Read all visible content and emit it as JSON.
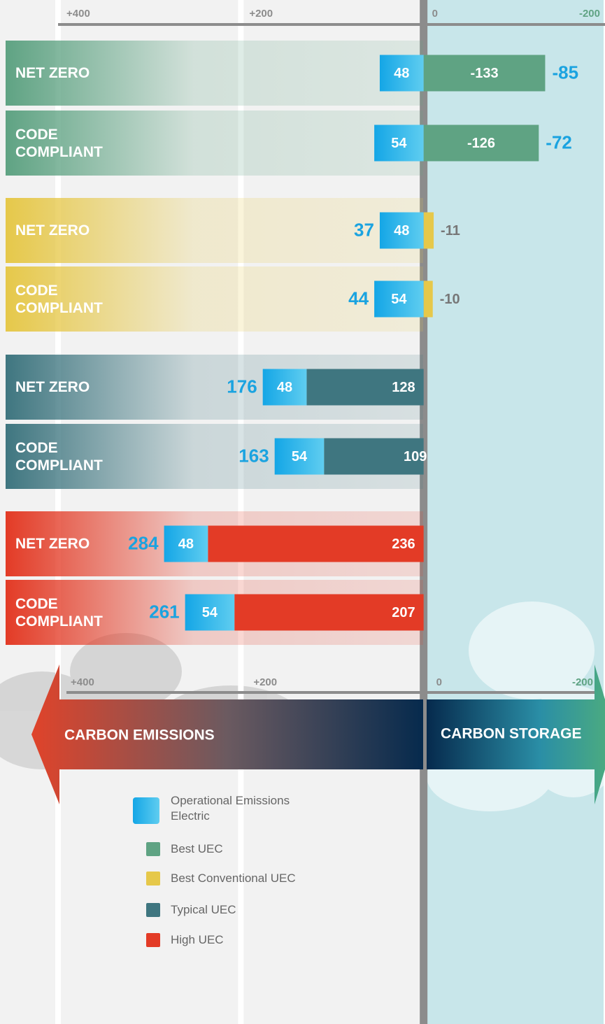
{
  "chart_data": {
    "type": "bar",
    "orientation": "horizontal",
    "stacked": true,
    "categories": [
      "NET ZERO",
      "CODE COMPLIANT",
      "NET ZERO",
      "CODE COMPLIANT",
      "NET ZERO",
      "CODE COMPLIANT",
      "NET ZERO",
      "CODE COMPLIANT"
    ],
    "series": [
      {
        "name": "Operational Emissions Electric",
        "color": "#1ab0e8",
        "values": [
          48,
          54,
          48,
          54,
          48,
          54,
          48,
          54
        ]
      },
      {
        "name": "Best UEC",
        "color": "#5fa383",
        "values": [
          -133,
          -126,
          null,
          null,
          null,
          null,
          null,
          null
        ]
      },
      {
        "name": "Best Conventional UEC",
        "color": "#e6c84a",
        "values": [
          null,
          null,
          -11,
          -10,
          null,
          null,
          null,
          null
        ]
      },
      {
        "name": "Typical UEC",
        "color": "#3f7680",
        "values": [
          null,
          null,
          null,
          null,
          128,
          109,
          null,
          null
        ]
      },
      {
        "name": "High UEC",
        "color": "#e33b26",
        "values": [
          null,
          null,
          null,
          null,
          null,
          null,
          236,
          207
        ]
      }
    ],
    "totals": [
      -85,
      -72,
      37,
      44,
      176,
      163,
      284,
      261
    ],
    "xlim": [
      400,
      -200
    ],
    "xticks": [
      {
        "value": 400,
        "label": "+400"
      },
      {
        "value": 200,
        "label": "+200"
      },
      0,
      -200
    ],
    "annotations": [
      "CARBON EMISSIONS",
      "CARBON STORAGE"
    ]
  }
}
